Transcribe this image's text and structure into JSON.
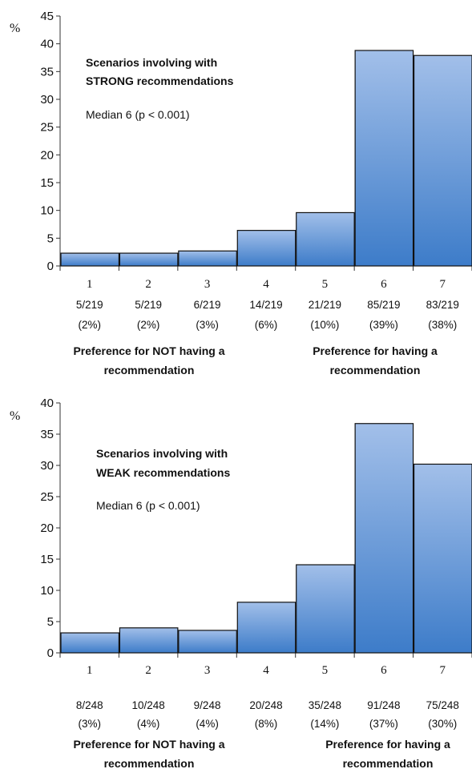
{
  "chart_data": [
    {
      "type": "bar",
      "ylabel": "%",
      "ylim": [
        0,
        45
      ],
      "yticks": [
        0,
        5,
        10,
        15,
        20,
        25,
        30,
        35,
        40,
        45
      ],
      "categories": [
        "1",
        "2",
        "3",
        "4",
        "5",
        "6",
        "7"
      ],
      "values": [
        2.3,
        2.3,
        2.7,
        6.4,
        9.6,
        38.8,
        37.9
      ],
      "counts": [
        "5/219",
        "5/219",
        "6/219",
        "14/219",
        "21/219",
        "85/219",
        "83/219"
      ],
      "percent_labels": [
        "(2%)",
        "(2%)",
        "(3%)",
        "(6%)",
        "(10%)",
        "(39%)",
        "(38%)"
      ],
      "annotation": [
        "Scenarios involving with",
        "STRONG recommendations"
      ],
      "median_text": "Median 6 (p < 0.001)",
      "left_caption": [
        "Preference for NOT having a",
        "recommendation"
      ],
      "right_caption": [
        "Preference for having a",
        "recommendation"
      ],
      "bar_color_top": "#a2bfe9",
      "bar_color_bottom": "#3d7cc9",
      "grid": false
    },
    {
      "type": "bar",
      "ylabel": "%",
      "ylim": [
        0,
        40
      ],
      "yticks": [
        0,
        5,
        10,
        15,
        20,
        25,
        30,
        35,
        40
      ],
      "categories": [
        "1",
        "2",
        "3",
        "4",
        "5",
        "6",
        "7"
      ],
      "values": [
        3.2,
        4.0,
        3.6,
        8.1,
        14.1,
        36.7,
        30.2
      ],
      "counts": [
        "8/248",
        "10/248",
        "9/248",
        "20/248",
        "35/248",
        "91/248",
        "75/248"
      ],
      "percent_labels": [
        "(3%)",
        "(4%)",
        "(4%)",
        "(8%)",
        "(14%)",
        "(37%)",
        "(30%)"
      ],
      "annotation": [
        "Scenarios involving with",
        "WEAK recommendations"
      ],
      "median_text": "Median 6 (p < 0.001)",
      "left_caption": [
        "Preference for NOT having a",
        "recommendation"
      ],
      "right_caption": [
        "Preference for having a",
        "recommendation"
      ],
      "bar_color_top": "#a2bfe9",
      "bar_color_bottom": "#3d7cc9",
      "grid": false
    }
  ]
}
